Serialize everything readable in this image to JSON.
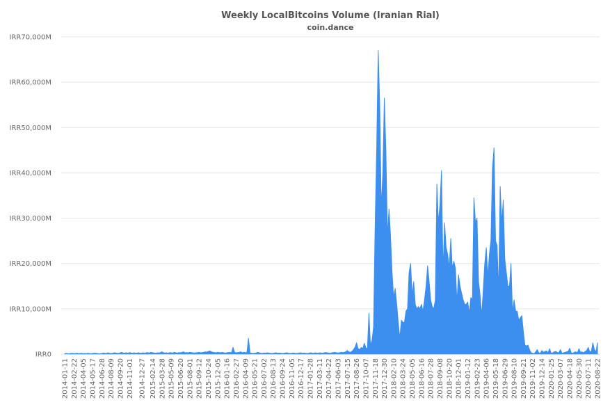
{
  "chart_data": {
    "type": "area",
    "title": "Weekly LocalBitcoins Volume (Iranian Rial)",
    "subtitle": "coin.dance",
    "color": "#3d8fef",
    "grid": true,
    "ylim": [
      0,
      70000
    ],
    "yticks": [
      {
        "value": 0,
        "label": "IRR0"
      },
      {
        "value": 10000,
        "label": "IRR10,000M"
      },
      {
        "value": 20000,
        "label": "IRR20,000M"
      },
      {
        "value": 30000,
        "label": "IRR30,000M"
      },
      {
        "value": 40000,
        "label": "IRR40,000M"
      },
      {
        "value": 50000,
        "label": "IRR50,000M"
      },
      {
        "value": 60000,
        "label": "IRR60,000M"
      },
      {
        "value": 70000,
        "label": "IRR70,000M"
      }
    ],
    "categories": [
      "2014-01-11",
      null,
      null,
      null,
      null,
      null,
      "2014-02-22",
      null,
      null,
      null,
      null,
      null,
      "2014-04-05",
      null,
      null,
      null,
      null,
      null,
      "2014-05-17",
      null,
      null,
      null,
      null,
      null,
      "2014-06-28",
      null,
      null,
      null,
      null,
      null,
      "2014-08-09",
      null,
      null,
      null,
      null,
      null,
      "2014-09-20",
      null,
      null,
      null,
      null,
      null,
      "2014-11-01",
      null,
      null,
      null,
      null,
      null,
      null,
      null,
      "2014-12-27",
      null,
      null,
      null,
      null,
      null,
      null,
      "2015-02-14",
      null,
      null,
      null,
      null,
      null,
      "2015-03-28",
      null,
      null,
      null,
      null,
      null,
      "2015-05-09",
      null,
      null,
      null,
      null,
      null,
      "2015-06-20",
      null,
      null,
      null,
      null,
      null,
      "2015-08-01",
      null,
      null,
      null,
      null,
      null,
      "2015-09-12",
      null,
      null,
      null,
      null,
      null,
      "2015-10-24",
      null,
      null,
      null,
      null,
      null,
      "2015-12-05",
      null,
      null,
      null,
      null,
      null,
      "2016-01-16",
      null,
      null,
      null,
      null,
      null,
      "2016-02-27",
      null,
      null,
      null,
      null,
      null,
      "2016-04-09",
      null,
      null,
      null,
      null,
      null,
      "2016-05-21",
      null,
      null,
      null,
      null,
      null,
      "2016-07-02",
      null,
      null,
      null,
      null,
      null,
      "2016-08-13",
      null,
      null,
      null,
      null,
      null,
      "2016-09-24",
      null,
      null,
      null,
      null,
      null,
      "2016-11-05",
      null,
      null,
      null,
      null,
      null,
      "2016-12-17",
      null,
      null,
      null,
      null,
      null,
      "2017-01-28",
      null,
      null,
      null,
      null,
      null,
      "2017-03-11",
      null,
      null,
      null,
      null,
      null,
      "2017-04-22",
      null,
      null,
      null,
      null,
      null,
      "2017-06-03",
      null,
      null,
      null,
      null,
      null,
      "2017-07-15",
      null,
      null,
      null,
      null,
      null,
      "2017-08-26",
      null,
      null,
      null,
      null,
      null,
      "2017-10-07",
      null,
      null,
      null,
      null,
      null,
      "2017-11-18",
      null,
      null,
      null,
      null,
      null,
      "2017-12-30",
      null,
      null,
      null,
      null,
      null,
      "2018-02-10",
      null,
      null,
      null,
      null,
      null,
      "2018-03-24",
      null,
      null,
      null,
      null,
      null,
      "2018-05-05",
      null,
      null,
      null,
      null,
      null,
      "2018-06-16",
      null,
      null,
      null,
      null,
      null,
      "2018-07-28",
      null,
      null,
      null,
      null,
      null,
      "2018-09-08",
      null,
      null,
      null,
      null,
      null,
      "2018-10-20",
      null,
      null,
      null,
      null,
      null,
      "2018-12-01",
      null,
      null,
      null,
      null,
      null,
      "2019-01-12",
      null,
      null,
      null,
      null,
      null,
      "2019-02-23",
      null,
      null,
      null,
      null,
      null,
      "2019-04-06",
      null,
      null,
      null,
      null,
      null,
      "2019-05-18",
      null,
      null,
      null,
      null,
      null,
      "2019-06-29",
      null,
      null,
      null,
      null,
      null,
      "2019-08-10",
      null,
      null,
      null,
      null,
      null,
      "2019-09-21",
      null,
      null,
      null,
      null,
      null,
      "2019-11-02",
      null,
      null,
      null,
      null,
      null,
      "2019-12-14",
      null,
      null,
      null,
      null,
      null,
      "2020-01-25",
      null,
      null,
      null,
      null,
      null,
      "2020-03-07",
      null,
      null,
      null,
      null,
      null,
      "2020-04-18",
      null,
      null,
      null,
      null,
      null,
      "2020-05-30",
      null,
      null,
      null,
      null,
      null,
      "2020-07-11",
      null,
      null,
      null,
      null,
      null,
      "2020-08-22"
    ],
    "values": [
      100,
      150,
      120,
      100,
      150,
      200,
      100,
      150,
      200,
      120,
      150,
      200,
      100,
      150,
      120,
      200,
      150,
      100,
      150,
      200,
      200,
      150,
      100,
      120,
      150,
      250,
      200,
      150,
      300,
      200,
      150,
      200,
      300,
      250,
      200,
      150,
      300,
      400,
      200,
      250,
      300,
      200,
      350,
      250,
      200,
      300,
      200,
      250,
      300,
      200,
      250,
      300,
      200,
      350,
      300,
      250,
      400,
      300,
      250,
      200,
      300,
      250,
      350,
      500,
      300,
      250,
      300,
      200,
      350,
      300,
      250,
      400,
      300,
      250,
      350,
      300,
      400,
      500,
      300,
      350,
      300,
      400,
      350,
      300,
      250,
      300,
      350,
      400,
      300,
      350,
      400,
      500,
      450,
      600,
      700,
      500,
      400,
      350,
      300,
      400,
      350,
      300,
      400,
      300,
      250,
      300,
      350,
      400,
      300,
      1500,
      400,
      300,
      350,
      400,
      500,
      300,
      400,
      350,
      300,
      3500,
      300,
      200,
      150,
      200,
      250,
      400,
      300,
      200,
      150,
      250,
      200,
      300,
      250,
      200,
      150,
      200,
      250,
      300,
      200,
      250,
      200,
      150,
      200,
      250,
      300,
      200,
      150,
      200,
      250,
      200,
      150,
      200,
      250,
      300,
      200,
      250,
      200,
      150,
      200,
      300,
      250,
      200,
      300,
      250,
      200,
      300,
      250,
      200,
      300,
      350,
      300,
      250,
      200,
      300,
      350,
      400,
      300,
      250,
      300,
      400,
      350,
      400,
      500,
      800,
      500,
      400,
      600,
      1000,
      1500,
      2500,
      1200,
      1000,
      1500,
      1200,
      2400,
      1500,
      1000,
      9000,
      2000,
      3000,
      6000,
      28000,
      45000,
      67000,
      55000,
      32000,
      40000,
      56500,
      45000,
      26000,
      32000,
      26000,
      18000,
      12500,
      14500,
      11000,
      7000,
      3500,
      7500,
      7000,
      7000,
      9500,
      10000,
      18000,
      20000,
      13000,
      16000,
      11000,
      10000,
      10500,
      10000,
      11000,
      9500,
      12000,
      15000,
      19500,
      16000,
      12000,
      10500,
      10000,
      12000,
      37500,
      29000,
      33000,
      40500,
      18000,
      29000,
      23500,
      22000,
      19000,
      25500,
      19000,
      20500,
      19000,
      11500,
      17500,
      15000,
      13500,
      12000,
      11000,
      11000,
      11500,
      9000,
      12500,
      12000,
      34500,
      29000,
      30000,
      16000,
      13000,
      8500,
      14000,
      20000,
      23500,
      17000,
      22000,
      25000,
      41000,
      45500,
      25000,
      24000,
      14000,
      37000,
      29000,
      34000,
      21000,
      18000,
      15000,
      15000,
      20000,
      9000,
      12000,
      9500,
      9500,
      7500,
      8000,
      8500,
      5000,
      2000,
      1800,
      2000,
      1000,
      300,
      200,
      100,
      500,
      1000,
      300,
      200,
      800,
      400,
      600,
      700,
      300,
      1200,
      200,
      300,
      500,
      600,
      400,
      300,
      1000,
      200,
      300,
      400,
      500,
      600,
      1300,
      300,
      200,
      400,
      500,
      300,
      1200,
      400,
      500,
      300,
      600,
      800,
      1500,
      500,
      600,
      2500,
      1000,
      500,
      2500
    ]
  }
}
